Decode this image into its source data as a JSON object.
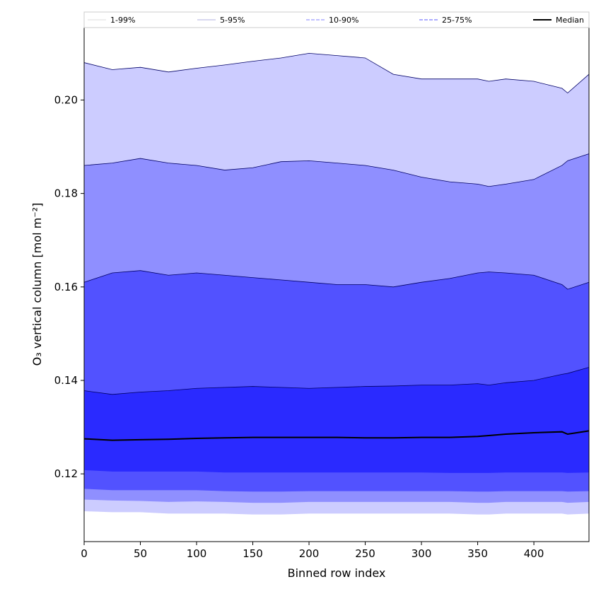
{
  "chart_data": {
    "type": "area",
    "xlabel": "Binned row index",
    "ylabel": "O₃ vertical column [mol m⁻²]",
    "xlim": [
      0,
      449
    ],
    "ylim": [
      0.1055,
      0.2155
    ],
    "x_ticks": [
      0,
      50,
      100,
      150,
      200,
      250,
      300,
      350,
      400
    ],
    "y_ticks": [
      0.12,
      0.14,
      0.16,
      0.18,
      0.2
    ],
    "y_tick_labels": [
      "0.12",
      "0.14",
      "0.16",
      "0.18",
      "0.20"
    ],
    "grid": false,
    "legend_position": "top",
    "x": [
      0,
      25,
      50,
      75,
      100,
      125,
      150,
      175,
      200,
      225,
      250,
      275,
      300,
      325,
      350,
      360,
      375,
      400,
      425,
      430,
      449
    ],
    "median": {
      "name": "Median",
      "color": "#000000",
      "values": [
        0.1275,
        0.1272,
        0.1273,
        0.1274,
        0.1276,
        0.1277,
        0.1278,
        0.1278,
        0.1278,
        0.1278,
        0.1277,
        0.1277,
        0.1278,
        0.1278,
        0.128,
        0.1282,
        0.1285,
        0.1288,
        0.129,
        0.1285,
        0.1292
      ]
    },
    "bands": [
      {
        "name": "1-99%",
        "fill": "#ccccff",
        "line_color": "#dcdcdc",
        "line_style": "solid",
        "upper": [
          0.208,
          0.2065,
          0.207,
          0.206,
          0.2068,
          0.2075,
          0.2083,
          0.209,
          0.21,
          0.2095,
          0.209,
          0.2055,
          0.2045,
          0.2045,
          0.2045,
          0.204,
          0.2045,
          0.204,
          0.2025,
          0.2015,
          0.2055
        ],
        "lower": [
          0.112,
          0.1118,
          0.1118,
          0.1115,
          0.1115,
          0.1115,
          0.1113,
          0.1113,
          0.1115,
          0.1115,
          0.1115,
          0.1115,
          0.1115,
          0.1115,
          0.1113,
          0.1113,
          0.1115,
          0.1115,
          0.1115,
          0.1113,
          0.1115
        ]
      },
      {
        "name": "5-95%",
        "fill": "#8f8fff",
        "line_color": "#b0b0e0",
        "line_style": "solid",
        "upper": [
          0.186,
          0.1865,
          0.1875,
          0.1865,
          0.186,
          0.185,
          0.1855,
          0.1868,
          0.187,
          0.1865,
          0.186,
          0.185,
          0.1835,
          0.1825,
          0.182,
          0.1815,
          0.182,
          0.183,
          0.186,
          0.187,
          0.1885
        ],
        "lower": [
          0.1145,
          0.1143,
          0.1142,
          0.114,
          0.1141,
          0.114,
          0.1138,
          0.1138,
          0.114,
          0.114,
          0.114,
          0.114,
          0.114,
          0.114,
          0.1138,
          0.1138,
          0.114,
          0.114,
          0.114,
          0.1138,
          0.114
        ]
      },
      {
        "name": "10-90%",
        "fill": "#5252ff",
        "line_color": "#8080ff",
        "line_style": "dashed",
        "upper": [
          0.161,
          0.163,
          0.1635,
          0.1625,
          0.163,
          0.1625,
          0.162,
          0.1615,
          0.161,
          0.1605,
          0.1605,
          0.16,
          0.161,
          0.1618,
          0.163,
          0.1632,
          0.163,
          0.1625,
          0.1605,
          0.1595,
          0.161
        ],
        "lower": [
          0.1168,
          0.1165,
          0.1165,
          0.1165,
          0.1165,
          0.1163,
          0.1162,
          0.1162,
          0.1163,
          0.1163,
          0.1163,
          0.1163,
          0.1163,
          0.1163,
          0.1162,
          0.1162,
          0.1163,
          0.1163,
          0.1163,
          0.1162,
          0.1163
        ]
      },
      {
        "name": "25-75%",
        "fill": "#2a2aff",
        "line_color": "#5a5aff",
        "line_style": "dashed",
        "upper": [
          0.1378,
          0.137,
          0.1375,
          0.1378,
          0.1383,
          0.1385,
          0.1387,
          0.1385,
          0.1383,
          0.1385,
          0.1387,
          0.1388,
          0.139,
          0.139,
          0.1393,
          0.139,
          0.1395,
          0.14,
          0.1413,
          0.1415,
          0.1428
        ],
        "lower": [
          0.1208,
          0.1205,
          0.1205,
          0.1205,
          0.1205,
          0.1203,
          0.1203,
          0.1203,
          0.1203,
          0.1203,
          0.1203,
          0.1203,
          0.1203,
          0.1202,
          0.1202,
          0.1202,
          0.1203,
          0.1203,
          0.1203,
          0.1202,
          0.1203
        ]
      }
    ]
  }
}
